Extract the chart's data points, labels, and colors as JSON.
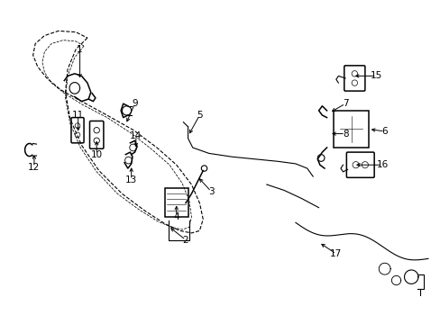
{
  "bg_color": "#ffffff",
  "line_color": "#000000",
  "figsize": [
    4.89,
    3.6
  ],
  "dpi": 100,
  "door_outer": {
    "x": [
      0.42,
      0.38,
      0.36,
      0.38,
      0.44,
      0.55,
      0.72,
      0.98,
      1.3,
      1.62,
      1.88,
      2.05,
      2.18,
      2.28,
      2.35,
      2.38,
      2.35,
      2.28,
      2.15,
      1.98,
      1.78,
      1.55,
      1.32,
      1.08,
      0.85,
      0.65,
      0.5,
      0.42
    ],
    "y": [
      2.72,
      2.6,
      2.42,
      2.22,
      2.0,
      1.78,
      1.58,
      1.4,
      1.28,
      1.22,
      1.22,
      1.25,
      1.3,
      1.42,
      1.58,
      1.78,
      1.98,
      2.18,
      2.38,
      2.55,
      2.68,
      2.78,
      2.85,
      2.88,
      2.88,
      2.85,
      2.8,
      2.72
    ]
  },
  "door_inner": {
    "x": [
      0.55,
      0.5,
      0.48,
      0.5,
      0.56,
      0.66,
      0.8,
      1.02,
      1.28,
      1.55,
      1.78,
      1.94,
      2.06,
      2.15,
      2.2,
      2.22,
      2.2,
      2.14,
      2.02,
      1.88,
      1.7,
      1.5,
      1.28,
      1.08,
      0.88,
      0.7,
      0.6,
      0.55
    ],
    "y": [
      2.62,
      2.5,
      2.34,
      2.16,
      1.96,
      1.76,
      1.58,
      1.42,
      1.32,
      1.26,
      1.26,
      1.3,
      1.36,
      1.48,
      1.62,
      1.8,
      1.98,
      2.16,
      2.34,
      2.5,
      2.62,
      2.7,
      2.75,
      2.77,
      2.76,
      2.72,
      2.68,
      2.62
    ]
  }
}
